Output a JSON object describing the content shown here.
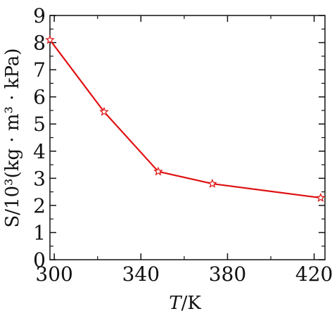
{
  "chart_data": {
    "type": "line",
    "xlabel_italic": "T",
    "xlabel_rest": "/K",
    "ylabel": "S/10³(kg · m³ · kPa)",
    "xlim": [
      298,
      425
    ],
    "ylim": [
      0,
      9
    ],
    "x_ticks": [
      300,
      340,
      380,
      420
    ],
    "y_ticks": [
      0,
      1,
      2,
      3,
      4,
      5,
      6,
      7,
      8,
      9
    ],
    "grid": false,
    "series": [
      {
        "color": "#e01010",
        "marker": "star-open",
        "x": [
          298,
          323,
          348,
          373,
          423
        ],
        "y": [
          8.1,
          5.45,
          3.25,
          2.8,
          2.28
        ]
      }
    ]
  }
}
